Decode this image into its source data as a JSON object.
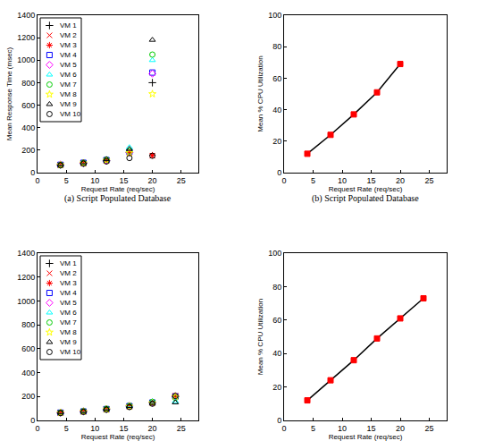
{
  "chart_data": [
    {
      "type": "scatter",
      "title": "(a) Script Populated Database",
      "x_label": "Request Rate (req/sec)",
      "y_label": "Mean Response Time (msec)",
      "x": [
        4,
        8,
        12,
        16,
        20
      ],
      "xlim": [
        0,
        28
      ],
      "xticks": [
        0,
        5,
        10,
        15,
        20,
        25
      ],
      "ylim": [
        0,
        1400
      ],
      "yticks": [
        0,
        200,
        400,
        600,
        800,
        1000,
        1200,
        1400
      ],
      "grid": false,
      "legend": "upper left",
      "series": [
        {
          "name": "VM 1",
          "color": "#000000",
          "marker": "plus",
          "values": [
            70,
            85,
            105,
            180,
            800
          ]
        },
        {
          "name": "VM 2",
          "color": "#ff0000",
          "marker": "x",
          "values": [
            68,
            82,
            108,
            175,
            150
          ]
        },
        {
          "name": "VM 3",
          "color": "#ff0000",
          "marker": "asterisk",
          "values": [
            70,
            85,
            110,
            180,
            155
          ]
        },
        {
          "name": "VM 4",
          "color": "#0000ff",
          "marker": "square",
          "values": [
            70,
            88,
            112,
            185,
            890
          ]
        },
        {
          "name": "VM 5",
          "color": "#ff00ff",
          "marker": "diamond",
          "values": [
            72,
            86,
            110,
            180,
            880
          ]
        },
        {
          "name": "VM 6",
          "color": "#00ffff",
          "marker": "triangle",
          "values": [
            75,
            90,
            120,
            225,
            1000
          ]
        },
        {
          "name": "VM 7",
          "color": "#00cc00",
          "marker": "circle",
          "values": [
            70,
            88,
            115,
            190,
            1050
          ]
        },
        {
          "name": "VM 8",
          "color": "#ffff00",
          "marker": "star",
          "values": [
            68,
            84,
            108,
            175,
            700
          ]
        },
        {
          "name": "VM 9",
          "color": "#000000",
          "marker": "triangle",
          "values": [
            72,
            90,
            120,
            210,
            1180
          ]
        },
        {
          "name": "VM 10",
          "color": "#000000",
          "marker": "circle",
          "values": [
            65,
            80,
            100,
            130,
            150
          ]
        }
      ]
    },
    {
      "type": "line",
      "title": "(b) Script Populated Database",
      "x_label": "Request Rate (req/sec)",
      "y_label": "Mean % CPU Utilization",
      "x": [
        4,
        8,
        12,
        16,
        20
      ],
      "xlim": [
        0,
        28
      ],
      "xticks": [
        0,
        5,
        10,
        15,
        20,
        25
      ],
      "ylim": [
        0,
        100
      ],
      "yticks": [
        0,
        20,
        40,
        60,
        80,
        100
      ],
      "grid": false,
      "series": [
        {
          "color": "#ff0000",
          "marker": "square",
          "values": [
            12,
            24,
            37,
            51,
            69
          ]
        }
      ]
    },
    {
      "type": "scatter",
      "x_label": "Request Rate (req/sec)",
      "x": [
        4,
        8,
        12,
        16,
        20,
        24
      ],
      "xlim": [
        0,
        28
      ],
      "xticks": [
        0,
        5,
        10,
        15,
        20,
        25
      ],
      "ylim": [
        0,
        1400
      ],
      "yticks": [
        0,
        200,
        400,
        600,
        800,
        1000,
        1200,
        1400
      ],
      "grid": false,
      "legend": "upper left",
      "series": [
        {
          "name": "VM 1",
          "color": "#000000",
          "marker": "plus",
          "values": [
            65,
            75,
            95,
            120,
            150,
            200
          ]
        },
        {
          "name": "VM 2",
          "color": "#ff0000",
          "marker": "x",
          "values": [
            64,
            74,
            93,
            118,
            148,
            205
          ]
        },
        {
          "name": "VM 3",
          "color": "#ff0000",
          "marker": "asterisk",
          "values": [
            66,
            76,
            96,
            122,
            152,
            208
          ]
        },
        {
          "name": "VM 4",
          "color": "#0000ff",
          "marker": "square",
          "values": [
            65,
            75,
            95,
            120,
            150,
            200
          ]
        },
        {
          "name": "VM 5",
          "color": "#ff00ff",
          "marker": "diamond",
          "values": [
            65,
            76,
            97,
            121,
            151,
            202
          ]
        },
        {
          "name": "VM 6",
          "color": "#00ffff",
          "marker": "triangle",
          "values": [
            68,
            80,
            100,
            125,
            160,
            160
          ]
        },
        {
          "name": "VM 7",
          "color": "#00cc00",
          "marker": "circle",
          "values": [
            66,
            78,
            98,
            123,
            155,
            190
          ]
        },
        {
          "name": "VM 8",
          "color": "#ffff00",
          "marker": "star",
          "values": [
            64,
            74,
            92,
            117,
            145,
            200
          ]
        },
        {
          "name": "VM 9",
          "color": "#000000",
          "marker": "triangle",
          "values": [
            66,
            77,
            97,
            120,
            145,
            150
          ]
        },
        {
          "name": "VM 10",
          "color": "#000000",
          "marker": "circle",
          "values": [
            62,
            72,
            90,
            112,
            140,
            205
          ]
        }
      ]
    },
    {
      "type": "line",
      "x_label": "Request Rate (req/sec)",
      "y_label": "Mean % CPU Utilization",
      "x": [
        4,
        8,
        12,
        16,
        20,
        24
      ],
      "xlim": [
        0,
        28
      ],
      "xticks": [
        0,
        5,
        10,
        15,
        20,
        25
      ],
      "ylim": [
        0,
        100
      ],
      "yticks": [
        0,
        20,
        40,
        60,
        80,
        100
      ],
      "grid": false,
      "series": [
        {
          "color": "#ff0000",
          "marker": "square",
          "values": [
            12,
            24,
            36,
            49,
            61,
            73
          ]
        }
      ]
    }
  ]
}
